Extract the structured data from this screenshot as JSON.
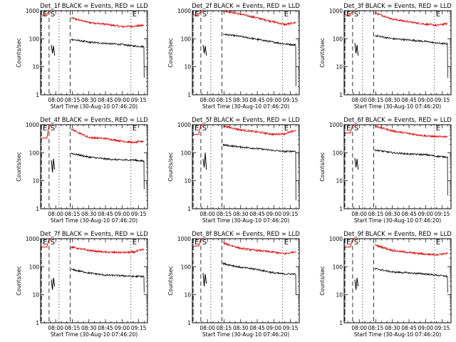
{
  "chart_data": {
    "type": "line",
    "grid": false,
    "y_scale": "log",
    "ylim": [
      1,
      1000
    ],
    "y_ticks": [
      "1",
      "10",
      "100",
      "1000"
    ],
    "ylabel": "Counts/sec",
    "xlabel": "Start Time (30-Aug-10 07:46:20)",
    "xlim": [
      "07:46:20",
      "09:23:00"
    ],
    "x_ticks": [
      "08:00",
      "08:15",
      "08:30",
      "08:45",
      "09:00",
      "09:15"
    ],
    "series_colors": {
      "events": "#000000",
      "lld": "#dd0000"
    },
    "markers": [
      {
        "label": "E",
        "time": "07:47",
        "style": "dashed"
      },
      {
        "label": "S",
        "time": "07:54",
        "style": "dashed"
      },
      {
        "label": "",
        "time": "08:03",
        "style": "dotted"
      },
      {
        "label": "",
        "time": "08:13",
        "style": "dashed"
      },
      {
        "label": "E",
        "time": "09:08",
        "style": "dotted"
      }
    ],
    "panels": [
      {
        "title": "Det_1f BLACK = Events, RED = LLD",
        "lld": {
          "pre_t": [
            "07:47",
            "07:52",
            "07:54"
          ],
          "pre_v": [
            700,
            700,
            1000
          ],
          "t": [
            "08:14",
            "08:30",
            "08:45",
            "09:00",
            "09:10",
            "09:20"
          ],
          "v": [
            550,
            380,
            330,
            270,
            280,
            300
          ]
        },
        "events": {
          "pre_t": [
            "07:56",
            "07:57",
            "07:58",
            "07:59"
          ],
          "pre_v": [
            60,
            30,
            55,
            25
          ],
          "t": [
            "08:14",
            "08:30",
            "08:45",
            "09:00",
            "09:10",
            "09:20"
          ],
          "v": [
            95,
            75,
            68,
            62,
            55,
            52
          ],
          "drop": 4
        }
      },
      {
        "title": "Det_2f BLACK = Events, RED = LLD",
        "lld": {
          "pre_t": [
            "07:47",
            "07:52",
            "07:54"
          ],
          "pre_v": [
            700,
            700,
            1000
          ],
          "t": [
            "08:14",
            "08:30",
            "08:45",
            "09:00",
            "09:10",
            "09:20"
          ],
          "v": [
            1000,
            750,
            550,
            400,
            320,
            380
          ]
        },
        "events": {
          "pre_t": [
            "07:56",
            "07:57",
            "07:58",
            "07:59"
          ],
          "pre_v": [
            60,
            30,
            55,
            25
          ],
          "t": [
            "08:14",
            "08:30",
            "08:45",
            "09:00",
            "09:10",
            "09:20"
          ],
          "v": [
            145,
            120,
            95,
            75,
            65,
            60
          ],
          "drop": 2
        }
      },
      {
        "title": "Det_3f BLACK = Events, RED = LLD",
        "lld": {
          "pre_t": [
            "07:47",
            "07:52",
            "07:54"
          ],
          "pre_v": [
            700,
            700,
            1000
          ],
          "t": [
            "08:14",
            "08:30",
            "08:45",
            "09:00",
            "09:10",
            "09:20"
          ],
          "v": [
            850,
            500,
            400,
            330,
            300,
            350
          ]
        },
        "events": {
          "pre_t": [
            "07:56",
            "07:57",
            "07:58",
            "07:59"
          ],
          "pre_v": [
            70,
            30,
            60,
            25
          ],
          "t": [
            "08:14",
            "08:30",
            "08:45",
            "09:00",
            "09:10",
            "09:20"
          ],
          "v": [
            130,
            100,
            90,
            80,
            70,
            65
          ],
          "drop": 4
        }
      },
      {
        "title": "Det_4f BLACK = Events, RED = LLD",
        "lld": {
          "pre_t": [
            "07:47",
            "07:52",
            "07:54"
          ],
          "pre_v": [
            330,
            330,
            1000
          ],
          "t": [
            "08:14",
            "08:30",
            "08:45",
            "09:00",
            "09:10",
            "09:20"
          ],
          "v": [
            700,
            350,
            320,
            260,
            230,
            260
          ]
        },
        "events": {
          "pre_t": [
            "07:56",
            "07:57",
            "07:58",
            "07:59"
          ],
          "pre_v": [
            55,
            20,
            60,
            25
          ],
          "t": [
            "08:14",
            "08:30",
            "08:45",
            "09:00",
            "09:10",
            "09:20"
          ],
          "v": [
            95,
            70,
            60,
            55,
            55,
            50
          ],
          "drop": 5
        }
      },
      {
        "title": "Det_5f BLACK = Events, RED = LLD",
        "lld": {
          "pre_t": [
            "07:47",
            "07:52",
            "07:54"
          ],
          "pre_v": [
            450,
            450,
            1000
          ],
          "t": [
            "08:14",
            "08:30",
            "08:45",
            "09:00",
            "09:10",
            "09:20"
          ],
          "v": [
            900,
            650,
            550,
            450,
            480,
            620
          ]
        },
        "events": {
          "pre_t": [
            "07:56",
            "07:57",
            "07:58",
            "07:59"
          ],
          "pre_v": [
            60,
            30,
            100,
            25
          ],
          "t": [
            "08:14",
            "08:30",
            "08:45",
            "09:00",
            "09:10",
            "09:20"
          ],
          "v": [
            190,
            160,
            140,
            120,
            110,
            115
          ],
          "drop": 2
        }
      },
      {
        "title": "Det_6f BLACK = Events, RED = LLD",
        "lld": {
          "pre_t": [
            "07:47",
            "07:52",
            "07:54"
          ],
          "pre_v": [
            500,
            500,
            1000
          ],
          "t": [
            "08:14",
            "08:30",
            "08:45",
            "09:00",
            "09:10",
            "09:20"
          ],
          "v": [
            900,
            600,
            480,
            400,
            370,
            380
          ]
        },
        "events": {
          "pre_t": [
            "07:56",
            "07:57",
            "07:58",
            "07:59"
          ],
          "pre_v": [
            65,
            30,
            60,
            25
          ],
          "t": [
            "08:14",
            "08:30",
            "08:45",
            "09:00",
            "09:10",
            "09:20"
          ],
          "v": [
            125,
            100,
            90,
            85,
            75,
            70
          ],
          "drop": 3
        }
      },
      {
        "title": "Det_7f BLACK = Events, RED = LLD",
        "lld": {
          "pre_t": [
            "07:47",
            "07:52",
            "07:54"
          ],
          "pre_v": [
            500,
            500,
            1000
          ],
          "t": [
            "08:14",
            "08:30",
            "08:45",
            "09:00",
            "09:10",
            "09:20"
          ],
          "v": [
            500,
            380,
            330,
            320,
            330,
            420
          ]
        },
        "events": {
          "pre_t": [
            "07:56",
            "07:57",
            "07:58",
            "07:59"
          ],
          "pre_v": [
            35,
            15,
            40,
            20
          ],
          "t": [
            "08:14",
            "08:30",
            "08:45",
            "09:00",
            "09:10",
            "09:20"
          ],
          "v": [
            80,
            60,
            50,
            48,
            45,
            45
          ],
          "drop": 12
        }
      },
      {
        "title": "Det_8f BLACK = Events, RED = LLD",
        "lld": {
          "pre_t": [
            "07:47",
            "07:52",
            "07:54"
          ],
          "pre_v": [
            550,
            550,
            1000
          ],
          "t": [
            "08:14",
            "08:30",
            "08:45",
            "09:00",
            "09:10",
            "09:20"
          ],
          "v": [
            700,
            450,
            380,
            330,
            290,
            350
          ]
        },
        "events": {
          "pre_t": [
            "07:56",
            "07:57",
            "07:58",
            "07:59"
          ],
          "pre_v": [
            60,
            20,
            55,
            25
          ],
          "t": [
            "08:14",
            "08:30",
            "08:45",
            "09:00",
            "09:10",
            "09:20"
          ],
          "v": [
            130,
            95,
            80,
            60,
            55,
            55
          ],
          "drop": 10
        }
      },
      {
        "title": "Det_9f BLACK = Events, RED = LLD",
        "lld": {
          "pre_t": [
            "07:47",
            "07:52",
            "07:54"
          ],
          "pre_v": [
            500,
            500,
            1000
          ],
          "t": [
            "08:14",
            "08:30",
            "08:45",
            "09:00",
            "09:10",
            "09:20"
          ],
          "v": [
            600,
            380,
            320,
            280,
            270,
            300
          ]
        },
        "events": {
          "pre_t": [
            "07:56",
            "07:57",
            "07:58",
            "07:59"
          ],
          "pre_v": [
            35,
            15,
            40,
            20
          ],
          "t": [
            "08:14",
            "08:30",
            "08:45",
            "09:00",
            "09:10",
            "09:20"
          ],
          "v": [
            85,
            65,
            60,
            55,
            50,
            45
          ],
          "drop": 12
        }
      }
    ]
  }
}
